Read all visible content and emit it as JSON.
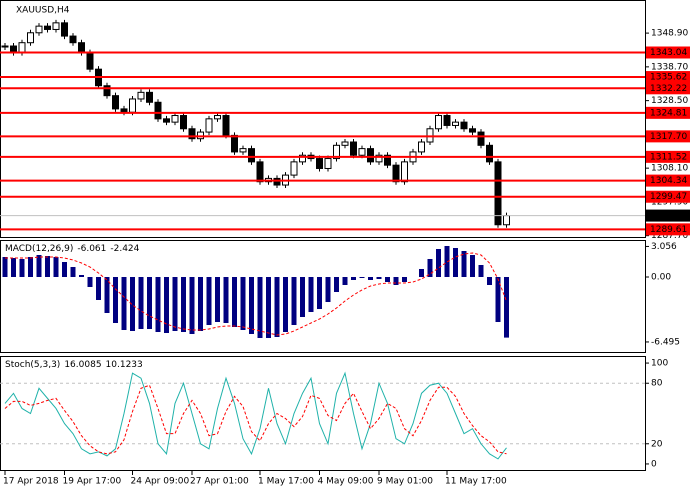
{
  "chart_data": [
    {
      "type": "candlestick",
      "title": "XAUUSD,H4",
      "categories": [
        "17 Apr 2018",
        null,
        null,
        null,
        null,
        null,
        null,
        "19 Apr 17:00",
        null,
        null,
        null,
        null,
        null,
        null,
        null,
        "24 Apr 09:00",
        null,
        null,
        null,
        null,
        null,
        null,
        "27 Apr 01:00",
        null,
        null,
        null,
        null,
        null,
        null,
        null,
        "1 May 17:00",
        null,
        null,
        null,
        null,
        null,
        null,
        "4 May 09:00",
        null,
        null,
        null,
        null,
        null,
        null,
        "9 May 01:00",
        null,
        null,
        null,
        null,
        null,
        null,
        null,
        "11 May 17:00",
        null,
        null,
        null,
        null,
        null,
        null,
        null
      ],
      "close": [
        1345,
        1343,
        1346,
        1349,
        1351,
        1350,
        1352,
        1348,
        1346,
        1343,
        1338,
        1333,
        1330,
        1326,
        1325,
        1329,
        1331,
        1328,
        1323,
        1322,
        1324,
        1320,
        1317,
        1319,
        1323,
        1324,
        1318,
        1313,
        1314,
        1310,
        1304,
        1305,
        1303,
        1306,
        1310,
        1312,
        1311,
        1308,
        1311,
        1315,
        1316,
        1312,
        1314,
        1310,
        1312,
        1309,
        1304,
        1310,
        1313,
        1316,
        1320,
        1324,
        1321,
        1322,
        1320,
        1319,
        1315,
        1310,
        1291,
        1293.77
      ],
      "ylim": [
        1287.3,
        1358.9
      ],
      "yticks": [
        {
          "value": 1348.9,
          "label": "1348.90"
        },
        {
          "value": 1338.7,
          "label": "1338.70"
        },
        {
          "value": 1328.5,
          "label": "1328.50"
        },
        {
          "value": 1308.1,
          "label": "1308.10"
        },
        {
          "value": 1297.9,
          "label": "1297.90"
        },
        {
          "value": 1287.7,
          "label": "1287.70"
        }
      ],
      "levels": [
        1343.04,
        1335.62,
        1332.22,
        1324.81,
        1317.7,
        1311.52,
        1304.34,
        1299.47,
        1289.61
      ],
      "level_labels": [
        "1343.04",
        "1335.62",
        "1332.22",
        "1324.81",
        "1317.70",
        "1311.52",
        "1304.34",
        "1299.47",
        "1289.61"
      ],
      "level_color": "#ff0000"
    },
    {
      "type": "macd",
      "title": "MACD(12,26,9)",
      "series": [
        {
          "color": "#000080",
          "values": [
            2.0,
            1.9,
            1.8,
            2.0,
            2.2,
            2.1,
            2.0,
            1.5,
            1.0,
            0.2,
            -1.0,
            -2.3,
            -3.6,
            -4.6,
            -5.3,
            -5.4,
            -5.2,
            -5.2,
            -5.5,
            -5.6,
            -5.4,
            -5.5,
            -5.7,
            -5.4,
            -4.8,
            -4.5,
            -4.6,
            -5.0,
            -5.3,
            -5.7,
            -6.1,
            -6.1,
            -6.0,
            -5.5,
            -4.8,
            -4.0,
            -3.5,
            -3.2,
            -2.5,
            -1.5,
            -0.8,
            -0.3,
            -0.1,
            -0.3,
            -0.2,
            -0.5,
            -0.8,
            -0.5,
            0.0,
            0.8,
            1.8,
            2.8,
            3.1,
            2.9,
            2.6,
            2.2,
            1.2,
            -0.8,
            -4.5,
            -6.061
          ]
        },
        {
          "color": "#ff0000",
          "values": [
            1.9,
            1.9,
            1.9,
            1.9,
            2.0,
            2.0,
            2.0,
            1.9,
            1.7,
            1.4,
            1.0,
            0.4,
            -0.3,
            -1.2,
            -2.0,
            -2.8,
            -3.4,
            -3.9,
            -4.3,
            -4.7,
            -5.0,
            -5.2,
            -5.3,
            -5.3,
            -5.2,
            -5.0,
            -4.9,
            -4.9,
            -5.0,
            -5.2,
            -5.4,
            -5.6,
            -5.8,
            -5.7,
            -5.4,
            -5.0,
            -4.6,
            -4.2,
            -3.7,
            -3.1,
            -2.4,
            -1.8,
            -1.3,
            -0.9,
            -0.7,
            -0.6,
            -0.6,
            -0.6,
            -0.5,
            -0.2,
            0.3,
            0.9,
            1.5,
            2.0,
            2.3,
            2.4,
            2.2,
            1.4,
            -0.2,
            -2.424
          ]
        }
      ],
      "ylim": [
        -7.5,
        3.7
      ],
      "yticks": [
        3.056,
        {
          "value": 0,
          "label": "0.00"
        },
        -6.495
      ]
    },
    {
      "type": "stochastic",
      "title": "Stoch(5,3,3)",
      "series": [
        {
          "color": "#20b2aa",
          "values": [
            60,
            70,
            55,
            50,
            75,
            65,
            55,
            40,
            30,
            15,
            10,
            12,
            8,
            15,
            50,
            90,
            85,
            60,
            20,
            10,
            60,
            80,
            50,
            20,
            15,
            55,
            85,
            60,
            25,
            10,
            35,
            75,
            40,
            20,
            50,
            70,
            85,
            40,
            20,
            70,
            90,
            50,
            15,
            40,
            80,
            60,
            25,
            20,
            40,
            70,
            78,
            80,
            70,
            50,
            30,
            35,
            20,
            10,
            5,
            16.0085
          ]
        },
        {
          "color": "#ff0000",
          "values": [
            55,
            62,
            62,
            58,
            60,
            63,
            65,
            53,
            42,
            28,
            18,
            12,
            10,
            12,
            24,
            52,
            75,
            78,
            55,
            30,
            30,
            50,
            63,
            50,
            28,
            30,
            52,
            67,
            57,
            32,
            23,
            40,
            50,
            45,
            37,
            47,
            68,
            65,
            48,
            43,
            60,
            70,
            52,
            35,
            45,
            60,
            55,
            35,
            28,
            43,
            63,
            76,
            76,
            67,
            50,
            38,
            28,
            22,
            12,
            10.1233
          ]
        }
      ],
      "ylim": [
        -6,
        107
      ],
      "yticks": [
        100,
        80,
        20,
        0
      ],
      "levels": [
        80,
        20
      ]
    }
  ]
}
